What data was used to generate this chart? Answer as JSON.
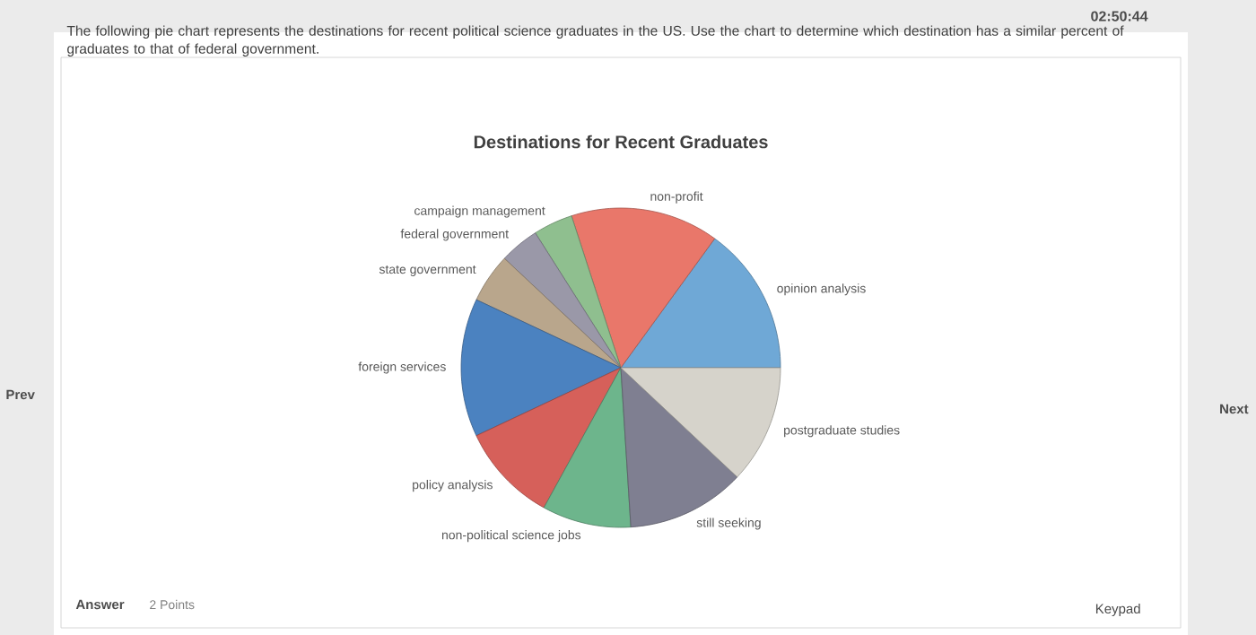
{
  "chart_data": {
    "type": "pie",
    "title": "Destinations for Recent Graduates",
    "categories": [
      "opinion analysis",
      "non-profit",
      "campaign management",
      "federal government",
      "state government",
      "foreign services",
      "policy analysis",
      "non-political science jobs",
      "still seeking",
      "postgraduate studies"
    ],
    "values": [
      15,
      15,
      4,
      4,
      5,
      14,
      10,
      9,
      12,
      12
    ],
    "colors": [
      "#6fa8d6",
      "#e9776a",
      "#8fbf8f",
      "#9a98a8",
      "#b9a68c",
      "#4b82c0",
      "#d6605a",
      "#6db58c",
      "#7f7f91",
      "#d6d3cb"
    ],
    "annotations": [
      "The following pie chart represents the destinations for recent political science graduates in the US. Use the chart to determine which destination has a similar percent of graduates to that of federal government.",
      "02:50:44",
      "Prev",
      "Next",
      "Answer",
      "2 Points",
      "Keypad"
    ]
  }
}
